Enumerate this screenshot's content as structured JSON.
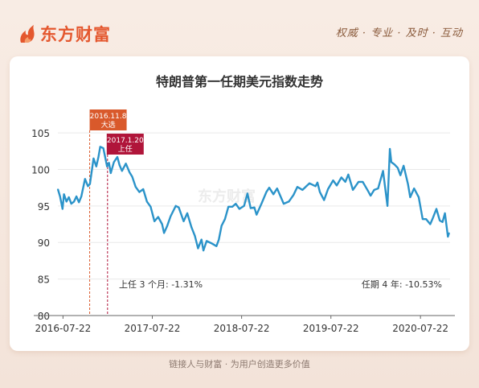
{
  "brand": {
    "name": "东方财富",
    "slogan": "权威 · 专业 · 及时 · 互动"
  },
  "footer": {
    "text": "链接人与财富 · 为用户创造更多价值"
  },
  "watermark": "东方财富",
  "colors": {
    "line": "#2b93c9",
    "brand": "#e4572e",
    "tag1": "#d9592b",
    "tag2": "#b0153a",
    "grid": "#e9e9e9"
  },
  "chart_data": {
    "type": "line",
    "title": "特朗普第一任期美元指数走势",
    "xlabel": "",
    "ylabel": "",
    "xlim": [
      "2016-07-01",
      "2020-11-20"
    ],
    "ylim": [
      80,
      106
    ],
    "yticks": [
      80,
      85,
      90,
      95,
      100,
      105
    ],
    "xticks": [
      "2016-07-22",
      "2017-07-22",
      "2018-07-22",
      "2019-07-22",
      "2020-07-22"
    ],
    "grid": "horizontal",
    "series": [
      {
        "values": [
          [
            "2016-07-01",
            97.3
          ],
          [
            "2016-07-10",
            96.3
          ],
          [
            "2016-07-20",
            94.6
          ],
          [
            "2016-07-26",
            96.6
          ],
          [
            "2016-08-05",
            95.6
          ],
          [
            "2016-08-15",
            96.2
          ],
          [
            "2016-08-25",
            95.3
          ],
          [
            "2016-09-05",
            95.6
          ],
          [
            "2016-09-15",
            96.3
          ],
          [
            "2016-09-25",
            95.5
          ],
          [
            "2016-10-05",
            96.3
          ],
          [
            "2016-10-20",
            98.7
          ],
          [
            "2016-11-01",
            97.7
          ],
          [
            "2016-11-09",
            98.0
          ],
          [
            "2016-11-24",
            101.5
          ],
          [
            "2016-12-05",
            100.4
          ],
          [
            "2016-12-14",
            101.7
          ],
          [
            "2016-12-21",
            103.1
          ],
          [
            "2017-01-03",
            102.9
          ],
          [
            "2017-01-18",
            100.4
          ],
          [
            "2017-01-26",
            100.9
          ],
          [
            "2017-02-02",
            99.5
          ],
          [
            "2017-02-15",
            101.0
          ],
          [
            "2017-03-01",
            101.7
          ],
          [
            "2017-03-10",
            100.6
          ],
          [
            "2017-03-20",
            99.8
          ],
          [
            "2017-04-05",
            100.8
          ],
          [
            "2017-04-20",
            99.6
          ],
          [
            "2017-05-01",
            99.0
          ],
          [
            "2017-05-15",
            97.6
          ],
          [
            "2017-05-30",
            96.9
          ],
          [
            "2017-06-15",
            97.3
          ],
          [
            "2017-06-30",
            95.6
          ],
          [
            "2017-07-15",
            94.9
          ],
          [
            "2017-07-31",
            92.9
          ],
          [
            "2017-08-15",
            93.5
          ],
          [
            "2017-08-31",
            92.5
          ],
          [
            "2017-09-08",
            91.3
          ],
          [
            "2017-09-20",
            92.2
          ],
          [
            "2017-10-05",
            93.6
          ],
          [
            "2017-10-26",
            95.0
          ],
          [
            "2017-11-07",
            94.8
          ],
          [
            "2017-11-27",
            92.9
          ],
          [
            "2017-12-12",
            94.0
          ],
          [
            "2017-12-29",
            92.1
          ],
          [
            "2018-01-12",
            90.9
          ],
          [
            "2018-01-25",
            89.2
          ],
          [
            "2018-02-08",
            90.4
          ],
          [
            "2018-02-16",
            88.9
          ],
          [
            "2018-03-01",
            90.2
          ],
          [
            "2018-03-20",
            89.9
          ],
          [
            "2018-04-10",
            89.5
          ],
          [
            "2018-04-20",
            90.4
          ],
          [
            "2018-05-01",
            92.3
          ],
          [
            "2018-05-15",
            93.2
          ],
          [
            "2018-05-29",
            94.9
          ],
          [
            "2018-06-14",
            94.9
          ],
          [
            "2018-06-28",
            95.3
          ],
          [
            "2018-07-13",
            94.6
          ],
          [
            "2018-08-01",
            95.0
          ],
          [
            "2018-08-15",
            96.7
          ],
          [
            "2018-08-28",
            94.7
          ],
          [
            "2018-09-12",
            94.8
          ],
          [
            "2018-09-21",
            93.8
          ],
          [
            "2018-10-11",
            95.3
          ],
          [
            "2018-10-31",
            96.9
          ],
          [
            "2018-11-12",
            97.5
          ],
          [
            "2018-11-29",
            96.6
          ],
          [
            "2018-12-14",
            97.4
          ],
          [
            "2019-01-10",
            95.3
          ],
          [
            "2019-01-31",
            95.6
          ],
          [
            "2019-02-19",
            96.5
          ],
          [
            "2019-03-07",
            97.6
          ],
          [
            "2019-03-28",
            97.2
          ],
          [
            "2019-04-25",
            98.1
          ],
          [
            "2019-05-20",
            97.7
          ],
          [
            "2019-05-28",
            98.2
          ],
          [
            "2019-06-07",
            96.9
          ],
          [
            "2019-06-24",
            95.8
          ],
          [
            "2019-07-10",
            97.3
          ],
          [
            "2019-07-31",
            98.5
          ],
          [
            "2019-08-15",
            97.8
          ],
          [
            "2019-09-03",
            98.9
          ],
          [
            "2019-09-19",
            98.3
          ],
          [
            "2019-10-01",
            99.3
          ],
          [
            "2019-10-20",
            97.2
          ],
          [
            "2019-11-12",
            98.3
          ],
          [
            "2019-11-29",
            98.3
          ],
          [
            "2019-12-20",
            97.1
          ],
          [
            "2019-12-31",
            96.4
          ],
          [
            "2020-01-15",
            97.2
          ],
          [
            "2020-01-31",
            97.4
          ],
          [
            "2020-02-20",
            99.8
          ],
          [
            "2020-03-09",
            95.0
          ],
          [
            "2020-03-19",
            102.8
          ],
          [
            "2020-03-25",
            101.0
          ],
          [
            "2020-04-06",
            100.7
          ],
          [
            "2020-04-20",
            100.2
          ],
          [
            "2020-05-01",
            99.2
          ],
          [
            "2020-05-14",
            100.5
          ],
          [
            "2020-06-01",
            98.0
          ],
          [
            "2020-06-10",
            96.2
          ],
          [
            "2020-06-26",
            97.4
          ],
          [
            "2020-07-15",
            96.2
          ],
          [
            "2020-07-31",
            93.2
          ],
          [
            "2020-08-14",
            93.2
          ],
          [
            "2020-08-31",
            92.5
          ],
          [
            "2020-09-10",
            93.3
          ],
          [
            "2020-09-25",
            94.6
          ],
          [
            "2020-10-09",
            93.0
          ],
          [
            "2020-10-20",
            92.8
          ],
          [
            "2020-10-30",
            94.0
          ],
          [
            "2020-11-06",
            92.2
          ],
          [
            "2020-11-11",
            90.8
          ],
          [
            "2020-11-16",
            91.3
          ]
        ]
      }
    ],
    "event_markers": [
      {
        "date": "2016-11-08",
        "date_label": "2016.11.8",
        "event": "大选"
      },
      {
        "date": "2017-01-20",
        "date_label": "2017.1.20",
        "event": "上任"
      }
    ],
    "annotations": [
      {
        "text": "上任 3 个月: -1.31%"
      },
      {
        "text": "任期 4 年: -10.53%"
      }
    ]
  }
}
